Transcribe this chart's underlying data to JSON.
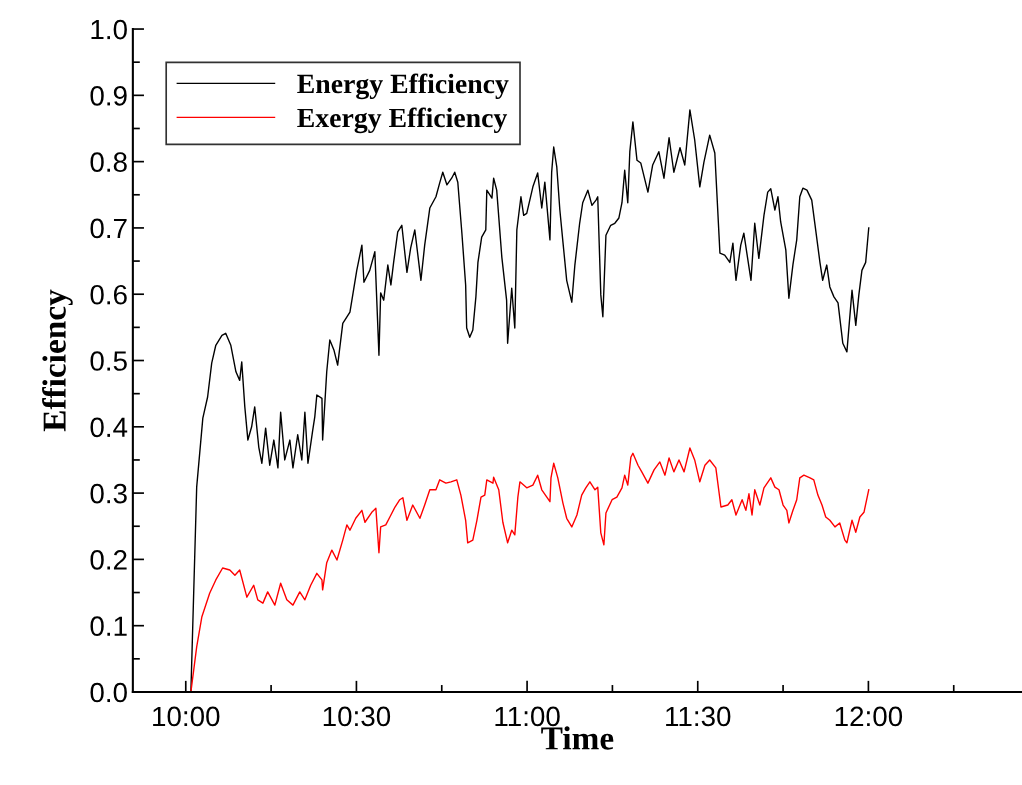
{
  "chart_data": {
    "type": "line",
    "xlabel": "Time",
    "ylabel": "Efficiency",
    "xlim": [
      9.845,
      12.45
    ],
    "ylim": [
      0,
      1.0
    ],
    "xticks": [
      {
        "value": 10,
        "label": "10:00"
      },
      {
        "value": 10.5,
        "label": "10:30"
      },
      {
        "value": 11,
        "label": "11:00"
      },
      {
        "value": 11.5,
        "label": "11:30"
      },
      {
        "value": 12,
        "label": "12:00"
      }
    ],
    "yticks": [
      {
        "value": 0,
        "label": "0.0"
      },
      {
        "value": 0.1,
        "label": "0.1"
      },
      {
        "value": 0.2,
        "label": "0.2"
      },
      {
        "value": 0.3,
        "label": "0.3"
      },
      {
        "value": 0.4,
        "label": "0.4"
      },
      {
        "value": 0.5,
        "label": "0.5"
      },
      {
        "value": 0.6,
        "label": "0.6"
      },
      {
        "value": 0.7,
        "label": "0.7"
      },
      {
        "value": 0.8,
        "label": "0.8"
      },
      {
        "value": 0.9,
        "label": "0.9"
      },
      {
        "value": 1.0,
        "label": "1.0"
      }
    ],
    "grid": false,
    "legend": "top left",
    "marker": "none",
    "line_style": "solid",
    "series": [
      {
        "name": "Energy Efficiency",
        "color": "#000000",
        "x": [
          10.015,
          10.032,
          10.05,
          10.064,
          10.076,
          10.088,
          10.106,
          10.117,
          10.132,
          10.147,
          10.158,
          10.164,
          10.173,
          10.182,
          10.193,
          10.202,
          10.214,
          10.223,
          10.234,
          10.246,
          10.258,
          10.27,
          10.278,
          10.29,
          10.305,
          10.314,
          10.328,
          10.34,
          10.349,
          10.358,
          10.372,
          10.378,
          10.384,
          10.399,
          10.401,
          10.413,
          10.422,
          10.434,
          10.445,
          10.46,
          10.481,
          10.501,
          10.516,
          10.522,
          10.539,
          10.554,
          10.566,
          10.571,
          10.58,
          10.592,
          10.601,
          10.609,
          10.621,
          10.633,
          10.648,
          10.659,
          10.671,
          10.689,
          10.7,
          10.715,
          10.733,
          10.744,
          10.753,
          10.765,
          10.779,
          10.788,
          10.797,
          10.809,
          10.82,
          10.823,
          10.832,
          10.841,
          10.85,
          10.856,
          10.867,
          10.879,
          10.882,
          10.897,
          10.902,
          10.911,
          10.926,
          10.94,
          10.943,
          10.955,
          10.964,
          10.97,
          10.982,
          10.99,
          10.999,
          11.017,
          11.031,
          11.043,
          11.052,
          11.067,
          11.072,
          11.078,
          11.087,
          11.096,
          11.105,
          11.116,
          11.131,
          11.14,
          11.154,
          11.163,
          11.178,
          11.19,
          11.202,
          11.207,
          11.216,
          11.222,
          11.231,
          11.245,
          11.257,
          11.269,
          11.278,
          11.286,
          11.295,
          11.301,
          11.31,
          11.322,
          11.333,
          11.354,
          11.368,
          11.386,
          11.401,
          11.416,
          11.43,
          11.448,
          11.462,
          11.477,
          11.491,
          11.506,
          11.518,
          11.535,
          11.55,
          11.565,
          11.579,
          11.594,
          11.603,
          11.612,
          11.626,
          11.635,
          11.656,
          11.667,
          11.679,
          11.694,
          11.705,
          11.714,
          11.726,
          11.735,
          11.743,
          11.758,
          11.767,
          11.779,
          11.79,
          11.799,
          11.808,
          11.82,
          11.834,
          11.843,
          11.858,
          11.866,
          11.878,
          11.887,
          11.899,
          11.911,
          11.925,
          11.937,
          11.952,
          11.963,
          11.972,
          11.981,
          11.992,
          12.001
        ],
        "values": [
          0.0,
          0.309,
          0.413,
          0.445,
          0.496,
          0.523,
          0.538,
          0.541,
          0.523,
          0.483,
          0.47,
          0.498,
          0.43,
          0.38,
          0.4,
          0.43,
          0.369,
          0.345,
          0.398,
          0.342,
          0.38,
          0.338,
          0.422,
          0.35,
          0.38,
          0.338,
          0.388,
          0.35,
          0.422,
          0.345,
          0.395,
          0.415,
          0.448,
          0.443,
          0.38,
          0.483,
          0.531,
          0.516,
          0.493,
          0.556,
          0.573,
          0.636,
          0.674,
          0.618,
          0.636,
          0.664,
          0.508,
          0.602,
          0.591,
          0.644,
          0.614,
          0.648,
          0.694,
          0.704,
          0.633,
          0.67,
          0.697,
          0.621,
          0.674,
          0.73,
          0.747,
          0.768,
          0.784,
          0.765,
          0.775,
          0.784,
          0.769,
          0.692,
          0.614,
          0.549,
          0.535,
          0.546,
          0.596,
          0.648,
          0.686,
          0.697,
          0.757,
          0.745,
          0.775,
          0.757,
          0.656,
          0.591,
          0.526,
          0.609,
          0.549,
          0.697,
          0.747,
          0.719,
          0.722,
          0.762,
          0.783,
          0.73,
          0.769,
          0.682,
          0.784,
          0.822,
          0.792,
          0.727,
          0.679,
          0.621,
          0.588,
          0.644,
          0.707,
          0.738,
          0.757,
          0.734,
          0.742,
          0.747,
          0.599,
          0.566,
          0.689,
          0.704,
          0.707,
          0.715,
          0.738,
          0.787,
          0.738,
          0.815,
          0.86,
          0.802,
          0.798,
          0.754,
          0.795,
          0.815,
          0.775,
          0.836,
          0.784,
          0.821,
          0.795,
          0.878,
          0.833,
          0.762,
          0.799,
          0.84,
          0.813,
          0.662,
          0.659,
          0.648,
          0.677,
          0.621,
          0.674,
          0.692,
          0.621,
          0.707,
          0.654,
          0.719,
          0.754,
          0.759,
          0.727,
          0.747,
          0.709,
          0.667,
          0.594,
          0.645,
          0.682,
          0.747,
          0.76,
          0.757,
          0.742,
          0.707,
          0.648,
          0.621,
          0.644,
          0.611,
          0.596,
          0.587,
          0.526,
          0.513,
          0.606,
          0.553,
          0.599,
          0.636,
          0.648,
          0.7
        ]
      },
      {
        "name": "Exergy Efficiency",
        "color": "#ff0000",
        "x": [
          10.015,
          10.032,
          10.047,
          10.07,
          10.088,
          10.108,
          10.129,
          10.144,
          10.158,
          10.179,
          10.199,
          10.211,
          10.226,
          10.24,
          10.261,
          10.278,
          10.296,
          10.314,
          10.334,
          10.349,
          10.366,
          10.384,
          10.399,
          10.401,
          10.413,
          10.428,
          10.443,
          10.46,
          10.472,
          10.481,
          10.498,
          10.516,
          10.525,
          10.545,
          10.557,
          10.566,
          10.571,
          10.586,
          10.598,
          10.613,
          10.627,
          10.636,
          10.648,
          10.665,
          10.686,
          10.7,
          10.715,
          10.733,
          10.744,
          10.762,
          10.777,
          10.794,
          10.806,
          10.82,
          10.826,
          10.841,
          10.853,
          10.865,
          10.876,
          10.882,
          10.9,
          10.902,
          10.917,
          10.929,
          10.943,
          10.955,
          10.964,
          10.973,
          10.979,
          10.999,
          11.017,
          11.031,
          11.043,
          11.067,
          11.07,
          11.078,
          11.09,
          11.105,
          11.116,
          11.131,
          11.146,
          11.16,
          11.172,
          11.184,
          11.199,
          11.207,
          11.216,
          11.225,
          11.231,
          11.249,
          11.263,
          11.278,
          11.286,
          11.295,
          11.304,
          11.31,
          11.325,
          11.336,
          11.354,
          11.372,
          11.389,
          11.404,
          11.416,
          11.43,
          11.445,
          11.46,
          11.477,
          11.491,
          11.506,
          11.521,
          11.535,
          11.553,
          11.568,
          11.588,
          11.6,
          11.612,
          11.63,
          11.641,
          11.65,
          11.659,
          11.667,
          11.682,
          11.694,
          11.714,
          11.726,
          11.738,
          11.75,
          11.761,
          11.767,
          11.779,
          11.79,
          11.799,
          11.811,
          11.829,
          11.84,
          11.852,
          11.864,
          11.875,
          11.887,
          11.902,
          11.916,
          11.931,
          11.937,
          11.952,
          11.963,
          11.975,
          11.987,
          12.001
        ],
        "values": [
          0.0,
          0.068,
          0.113,
          0.149,
          0.169,
          0.187,
          0.184,
          0.176,
          0.184,
          0.143,
          0.161,
          0.139,
          0.134,
          0.151,
          0.131,
          0.164,
          0.139,
          0.131,
          0.151,
          0.139,
          0.161,
          0.179,
          0.169,
          0.154,
          0.195,
          0.214,
          0.199,
          0.229,
          0.252,
          0.244,
          0.262,
          0.274,
          0.256,
          0.271,
          0.277,
          0.21,
          0.249,
          0.252,
          0.264,
          0.279,
          0.29,
          0.293,
          0.259,
          0.282,
          0.262,
          0.282,
          0.305,
          0.305,
          0.32,
          0.315,
          0.317,
          0.32,
          0.297,
          0.259,
          0.225,
          0.229,
          0.259,
          0.294,
          0.297,
          0.32,
          0.315,
          0.324,
          0.305,
          0.256,
          0.225,
          0.244,
          0.237,
          0.294,
          0.317,
          0.308,
          0.312,
          0.327,
          0.305,
          0.287,
          0.323,
          0.345,
          0.323,
          0.285,
          0.262,
          0.249,
          0.267,
          0.297,
          0.308,
          0.317,
          0.305,
          0.309,
          0.24,
          0.222,
          0.27,
          0.29,
          0.294,
          0.308,
          0.327,
          0.312,
          0.354,
          0.36,
          0.342,
          0.332,
          0.315,
          0.335,
          0.347,
          0.327,
          0.353,
          0.332,
          0.35,
          0.332,
          0.368,
          0.35,
          0.317,
          0.342,
          0.35,
          0.338,
          0.279,
          0.282,
          0.29,
          0.267,
          0.29,
          0.274,
          0.299,
          0.267,
          0.305,
          0.282,
          0.308,
          0.323,
          0.309,
          0.305,
          0.282,
          0.274,
          0.255,
          0.274,
          0.29,
          0.323,
          0.327,
          0.323,
          0.32,
          0.297,
          0.282,
          0.264,
          0.259,
          0.249,
          0.255,
          0.229,
          0.225,
          0.259,
          0.241,
          0.264,
          0.271,
          0.305
        ]
      }
    ]
  }
}
